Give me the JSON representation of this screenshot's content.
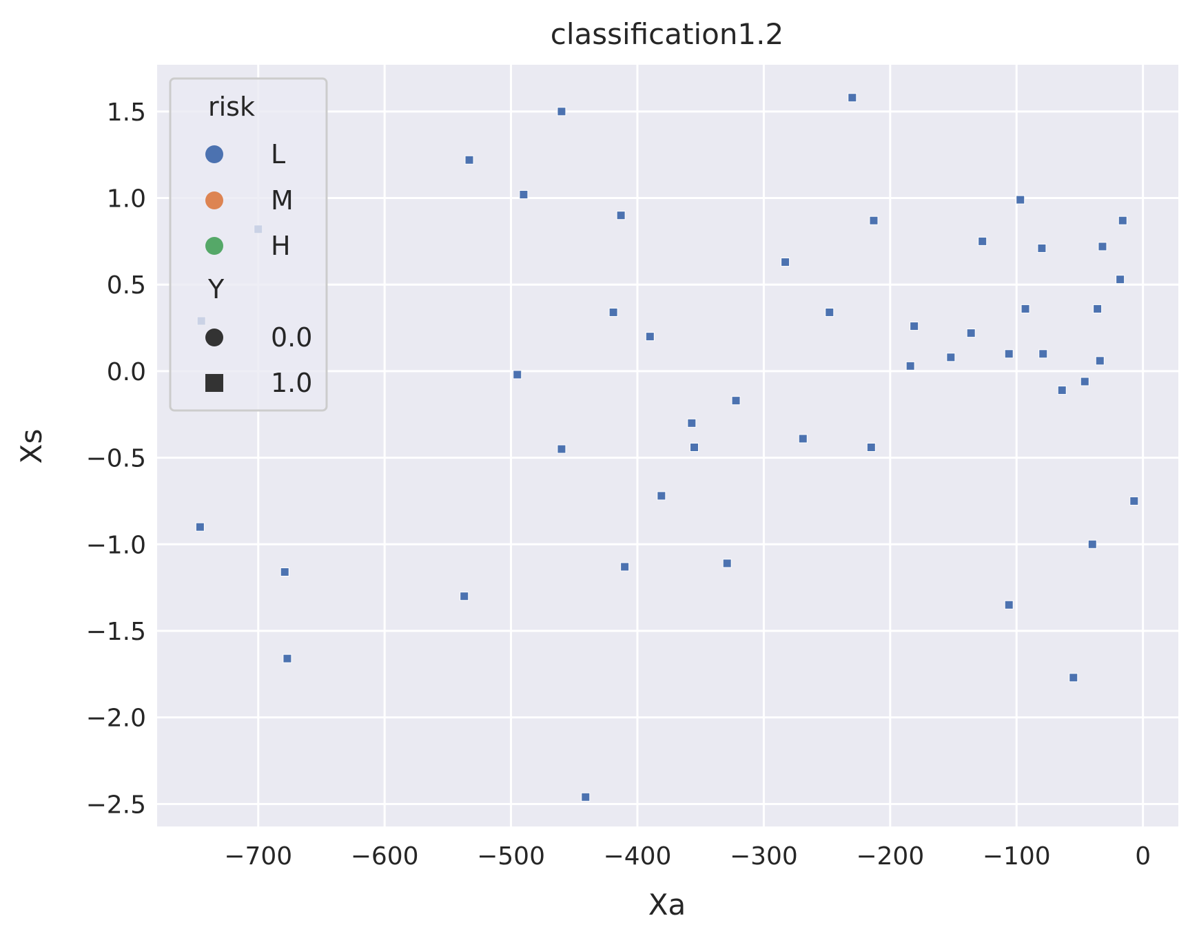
{
  "chart_data": {
    "type": "scatter",
    "title": "classification1.2",
    "xlabel": "Xa",
    "ylabel": "Xs",
    "xlim": [
      -780,
      28
    ],
    "ylim": [
      -2.63,
      1.77
    ],
    "xticks": [
      -700,
      -600,
      -500,
      -400,
      -300,
      -200,
      -100,
      0
    ],
    "yticks": [
      1.5,
      1.0,
      0.5,
      0.0,
      -0.5,
      -1.0,
      -1.5,
      -2.0,
      -2.5
    ],
    "xtick_labels": [
      "−700",
      "−600",
      "−500",
      "−400",
      "−300",
      "−200",
      "−100",
      "0"
    ],
    "ytick_labels": [
      "1.5",
      "1.0",
      "0.5",
      "0.0",
      "−0.5",
      "−1.0",
      "−1.5",
      "−2.0",
      "−2.5"
    ],
    "grid": true,
    "background": "#EAEAF2",
    "grid_color": "#FFFFFF",
    "legend": {
      "placement": "top-left",
      "hue_title": "risk",
      "hue_entries": [
        {
          "label": "L",
          "color": "#4C72B0"
        },
        {
          "label": "M",
          "color": "#DD8452"
        },
        {
          "label": "H",
          "color": "#55A868"
        }
      ],
      "style_title": "Y",
      "style_entries": [
        {
          "label": "0.0",
          "marker": "circle"
        },
        {
          "label": "1.0",
          "marker": "square"
        }
      ]
    },
    "series": [
      {
        "risk": "L",
        "Y": "1.0",
        "marker": "square",
        "color": "#4C72B0",
        "points": [
          {
            "x": -745,
            "y": 0.29
          },
          {
            "x": -700,
            "y": 0.82
          },
          {
            "x": -746,
            "y": -0.9
          },
          {
            "x": -679,
            "y": -1.16
          },
          {
            "x": -677,
            "y": -1.66
          },
          {
            "x": -537,
            "y": -1.3
          },
          {
            "x": -533,
            "y": 1.22
          },
          {
            "x": -495,
            "y": -0.02
          },
          {
            "x": -490,
            "y": 1.02
          },
          {
            "x": -460,
            "y": 1.5
          },
          {
            "x": -460,
            "y": -0.45
          },
          {
            "x": -441,
            "y": -2.46
          },
          {
            "x": -419,
            "y": 0.34
          },
          {
            "x": -413,
            "y": 0.9
          },
          {
            "x": -410,
            "y": -1.13
          },
          {
            "x": -390,
            "y": 0.2
          },
          {
            "x": -381,
            "y": -0.72
          },
          {
            "x": -357,
            "y": -0.3
          },
          {
            "x": -355,
            "y": -0.44
          },
          {
            "x": -322,
            "y": -0.17
          },
          {
            "x": -329,
            "y": -1.11
          },
          {
            "x": -283,
            "y": 0.63
          },
          {
            "x": -269,
            "y": -0.39
          },
          {
            "x": -248,
            "y": 0.34
          },
          {
            "x": -230,
            "y": 1.58
          },
          {
            "x": -215,
            "y": -0.44
          },
          {
            "x": -213,
            "y": 0.87
          },
          {
            "x": -184,
            "y": 0.03
          },
          {
            "x": -181,
            "y": 0.26
          },
          {
            "x": -152,
            "y": 0.08
          },
          {
            "x": -136,
            "y": 0.22
          },
          {
            "x": -127,
            "y": 0.75
          },
          {
            "x": -106,
            "y": 0.1
          },
          {
            "x": -106,
            "y": -1.35
          },
          {
            "x": -97,
            "y": 0.99
          },
          {
            "x": -93,
            "y": 0.36
          },
          {
            "x": -80,
            "y": 0.71
          },
          {
            "x": -79,
            "y": 0.1
          },
          {
            "x": -64,
            "y": -0.11
          },
          {
            "x": -55,
            "y": -1.77
          },
          {
            "x": -46,
            "y": -0.06
          },
          {
            "x": -40,
            "y": -1.0
          },
          {
            "x": -36,
            "y": 0.36
          },
          {
            "x": -34,
            "y": 0.06
          },
          {
            "x": -32,
            "y": 0.72
          },
          {
            "x": -18,
            "y": 0.53
          },
          {
            "x": -16,
            "y": 0.87
          },
          {
            "x": -7,
            "y": -0.75
          }
        ]
      }
    ]
  }
}
